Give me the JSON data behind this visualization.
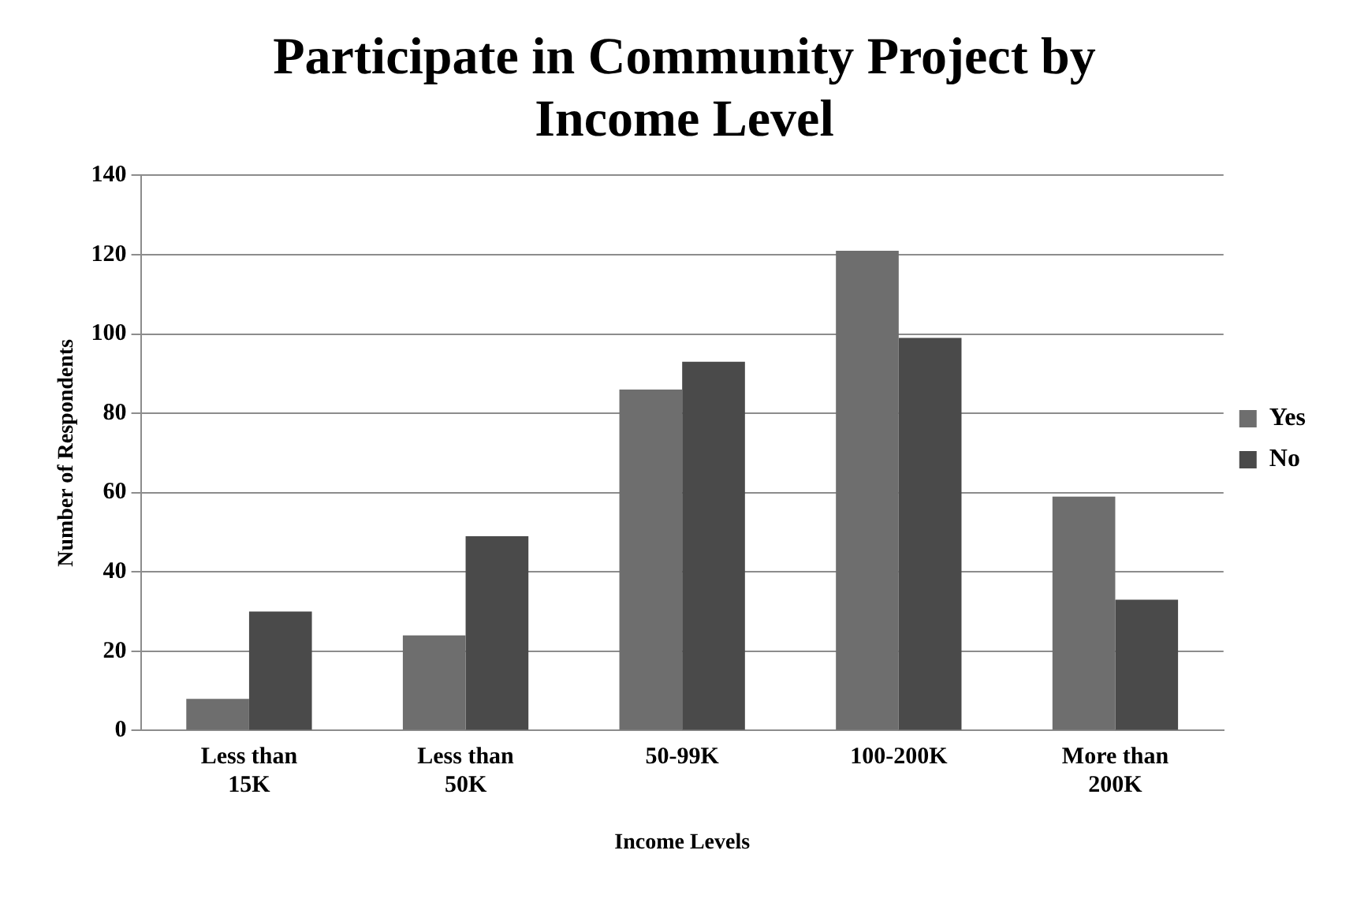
{
  "chart_data": {
    "type": "bar",
    "title": "Participate in Community Project by Income Level",
    "xlabel": "Income Levels",
    "ylabel": "Number of Respondents",
    "categories": [
      "Less than 15K",
      "Less than 50K",
      "50-99K",
      "100-200K",
      "More than 200K"
    ],
    "series": [
      {
        "name": "Yes",
        "color": "#6e6e6e",
        "values": [
          8,
          24,
          86,
          121,
          59
        ]
      },
      {
        "name": "No",
        "color": "#4a4a4a",
        "values": [
          30,
          49,
          93,
          99,
          33
        ]
      }
    ],
    "ylim": [
      0,
      140
    ],
    "yticks": [
      0,
      20,
      40,
      60,
      80,
      100,
      120,
      140
    ],
    "grid": "y",
    "legend": "right"
  }
}
